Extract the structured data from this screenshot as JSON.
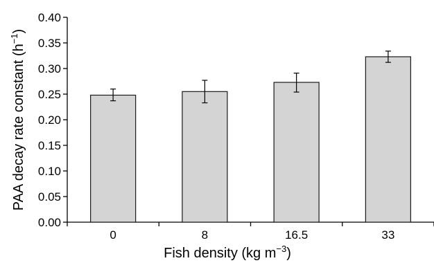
{
  "chart_data": {
    "type": "bar",
    "categories": [
      "0",
      "8",
      "16.5",
      "33"
    ],
    "values": [
      0.248,
      0.255,
      0.273,
      0.323
    ],
    "error_low": [
      0.237,
      0.233,
      0.254,
      0.312
    ],
    "error_high": [
      0.26,
      0.277,
      0.291,
      0.334
    ],
    "ylim": [
      0,
      0.4
    ],
    "yticks": [
      "0.00",
      "0.05",
      "0.10",
      "0.15",
      "0.20",
      "0.25",
      "0.30",
      "0.35",
      "0.40"
    ],
    "xlabel": {
      "text": "Fish density (kg m",
      "sup": "−3",
      "close": ")"
    },
    "ylabel": {
      "text": "PAA decay rate constant (h",
      "sup": "−1",
      "close": ")"
    },
    "bar_color": "#d4d4d4",
    "edge_color": "#1a1a1a",
    "grid": false
  }
}
